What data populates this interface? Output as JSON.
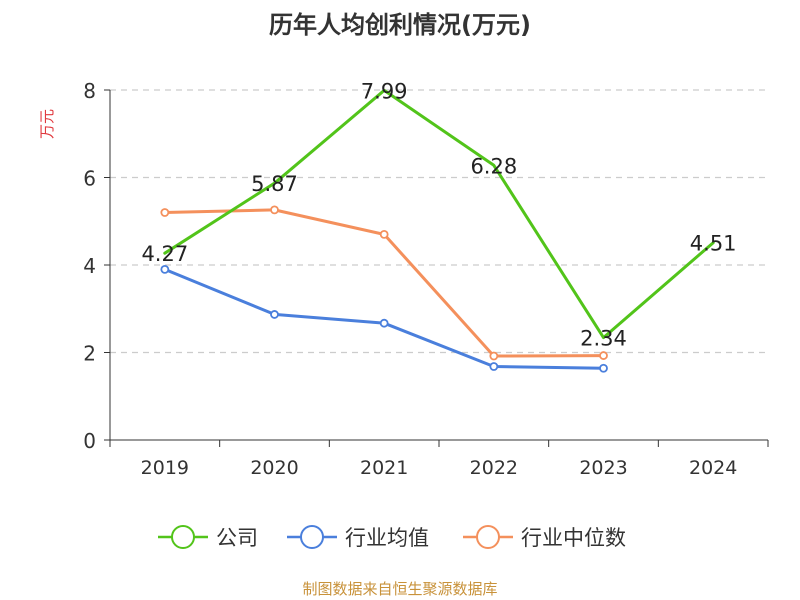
{
  "chart_data": {
    "type": "line",
    "title": "历年人均创利情况(万元)",
    "ylabel": "万元",
    "xlabel": "",
    "ylim": [
      0,
      8
    ],
    "yticks": [
      0,
      2,
      4,
      6,
      8
    ],
    "grid": true,
    "legend_position": "bottom",
    "categories": [
      "2019",
      "2020",
      "2021",
      "2022",
      "2023",
      "2024"
    ],
    "series": [
      {
        "name": "公司",
        "color": "#52c41a",
        "values": [
          4.27,
          5.87,
          7.99,
          6.28,
          2.34,
          4.51
        ],
        "show_labels": true,
        "show_markers": false
      },
      {
        "name": "行业均值",
        "color": "#4a7fdc",
        "values": [
          3.9,
          2.87,
          2.67,
          1.68,
          1.64,
          null
        ],
        "show_labels": false,
        "show_markers": true
      },
      {
        "name": "行业中位数",
        "color": "#f4905c",
        "values": [
          5.2,
          5.26,
          4.7,
          1.92,
          1.93,
          null
        ],
        "show_labels": false,
        "show_markers": true
      }
    ],
    "label_texts": [
      "4.27",
      "5.87",
      "7.99",
      "6.28",
      "2.34",
      "4.51"
    ],
    "footer": "制图数据来自恒生聚源数据库",
    "colors": {
      "axis": "#333333",
      "grid": "#cccccc",
      "ylabel": "#e0393e",
      "footer": "#c8923a"
    }
  }
}
